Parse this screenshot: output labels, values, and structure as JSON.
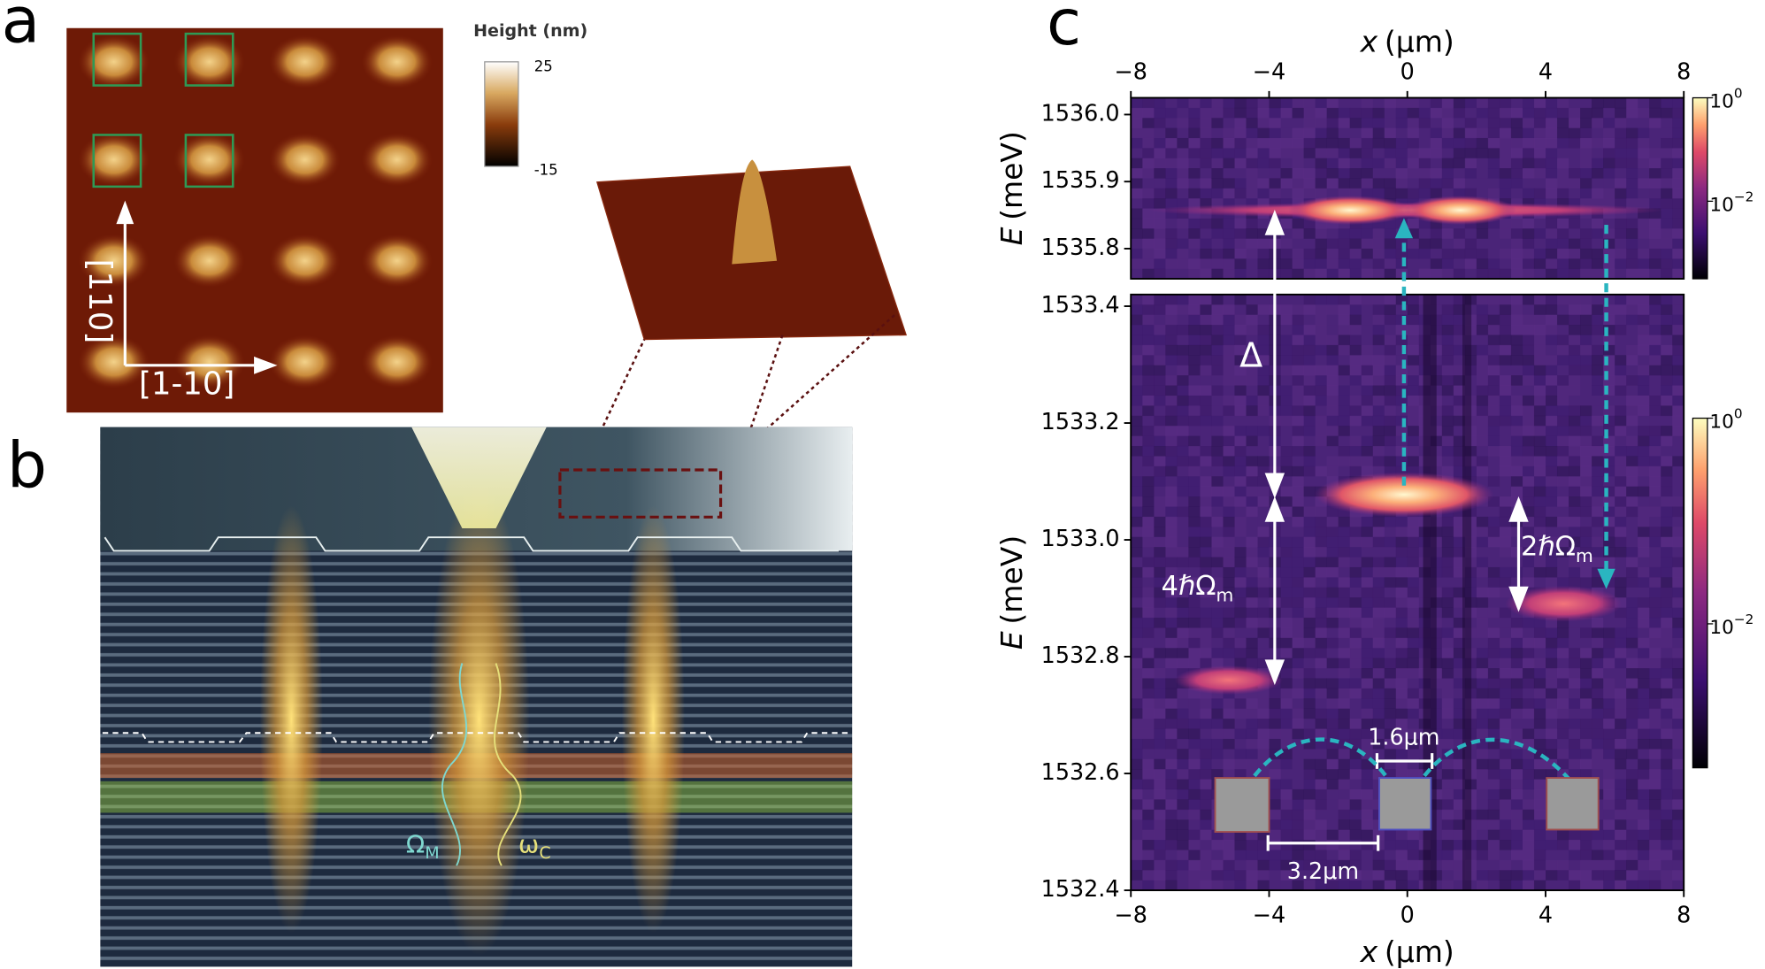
{
  "panel_a": {
    "label": "a",
    "axis_labels": {
      "vertical": "[110]",
      "horizontal": "[1-10]"
    },
    "colorbar": {
      "title": "Height (nm)",
      "ticks": [
        25,
        -15
      ]
    }
  },
  "panel_b": {
    "label": "b",
    "annotations": [
      {
        "symbol": "Ω",
        "subscript": "M"
      },
      {
        "symbol": "ω",
        "subscript": "C"
      }
    ]
  },
  "panel_c": {
    "label": "c"
  },
  "chart_data": [
    {
      "type": "heatmap",
      "xlabel": {
        "var": "x",
        "unit": "(μm)"
      },
      "ylabel": {
        "var": "E",
        "unit": "(meV)"
      },
      "xlim": [
        -8,
        8
      ],
      "xticks": [
        {
          "value": -8,
          "label": "−8"
        },
        {
          "value": -4,
          "label": "−4"
        },
        0,
        4,
        8
      ],
      "ylim": [
        1535.755,
        1536.025
      ],
      "yticks": [
        1535.8,
        1535.9,
        {
          "value": 1536,
          "label": "1536.0"
        }
      ],
      "colorbar": {
        "base": "10",
        "clim": [
          -3.5,
          0
        ],
        "ticks": [
          0,
          {
            "value": -2,
            "label": "−2"
          }
        ]
      }
    },
    {
      "type": "heatmap",
      "xlabel": {
        "var": "x",
        "unit": "(μm)"
      },
      "ylabel": {
        "var": "E",
        "unit": "(meV)"
      },
      "xlim": [
        -8,
        8
      ],
      "xticks": [
        {
          "value": -8,
          "label": "−8"
        },
        {
          "value": -4,
          "label": "−4"
        },
        0,
        4,
        8
      ],
      "ylim": [
        1532.4,
        1533.42
      ],
      "yticks": [
        1532.4,
        1532.6,
        1532.8,
        {
          "value": 1533,
          "label": "1533.0"
        },
        1533.2,
        1533.4
      ],
      "colorbar": {
        "base": "10",
        "clim": [
          -3.4,
          0
        ],
        "ticks": [
          0,
          {
            "value": -2,
            "label": "−2"
          }
        ]
      },
      "annotations": {
        "delta": "Δ",
        "splitting_4": {
          "text": "4ℏΩ",
          "sub": "m"
        },
        "splitting_2": {
          "text": "2ℏΩ",
          "sub": "m"
        },
        "scale_small": "1.6μm",
        "scale_large": "3.2μm"
      }
    }
  ]
}
